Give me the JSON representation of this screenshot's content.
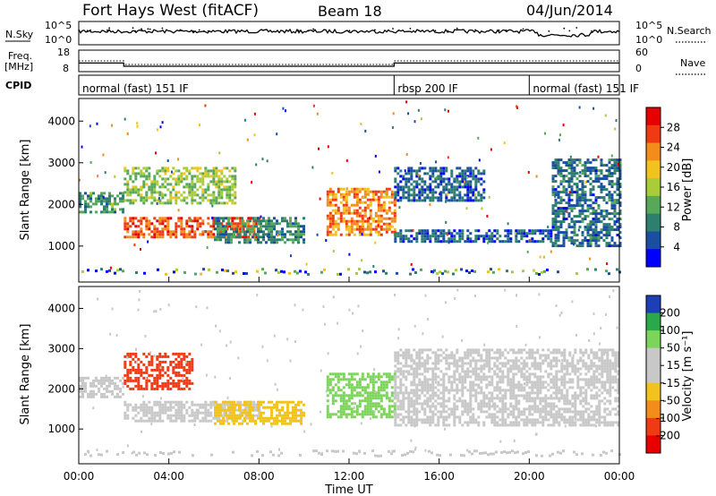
{
  "header": {
    "station": "Fort Hays West (fitACF)",
    "beam": "Beam 18",
    "date": "04/Jun/2014"
  },
  "left_labels": {
    "nsky": "N.Sky",
    "freq": "Freq.",
    "freq_unit": "[MHz]",
    "cpid": "CPID",
    "nsky_tick_top": "10^5",
    "nsky_tick_bottom": "10^0",
    "freq_tick_top": "18",
    "freq_tick_bottom": "8"
  },
  "right_labels": {
    "nsearch": "N.Search",
    "nave": "Nave",
    "nsearch_tick_top": "10^5",
    "nsearch_tick_bottom": "10^0",
    "nave_tick_top": "60",
    "nave_tick_bottom": "0"
  },
  "cpid_segments": [
    {
      "label": "normal (fast) 151 IF",
      "start": "00:00",
      "end": "14:00"
    },
    {
      "label": "rbsp 200 IF",
      "start": "14:00",
      "end": "20:00"
    },
    {
      "label": "normal (fast) 151 IF",
      "start": "20:00",
      "end": "24:00"
    }
  ],
  "panels": {
    "power": {
      "ylabel": "Slant Range [km]",
      "yticks": [
        "1000",
        "2000",
        "3000",
        "4000"
      ],
      "colorbar_label": "Power [dB]",
      "colorbar_ticks": [
        "4",
        "8",
        "12",
        "16",
        "20",
        "24",
        "28"
      ],
      "colorbar_colors": [
        "#0000ff",
        "#1a4fa0",
        "#2f7f6f",
        "#58a85a",
        "#a9cc3a",
        "#f2c31e",
        "#f28c1a",
        "#ef3a14",
        "#e60000"
      ]
    },
    "velocity": {
      "ylabel": "Slant Range [km]",
      "yticks": [
        "1000",
        "2000",
        "3000",
        "4000"
      ],
      "colorbar_label": "Velocity [m s⁻¹]",
      "colorbar_ticks": [
        "200",
        "100",
        "50",
        "15",
        "-15",
        "-50",
        "-100",
        "-200"
      ],
      "colorbar_colors": [
        "#1c3fb5",
        "#2aa84a",
        "#7cd45a",
        "#c8c8c8",
        "#c8c8c8",
        "#f2c31e",
        "#f28c1a",
        "#ef3a14",
        "#e60000"
      ]
    }
  },
  "xaxis": {
    "label": "Time UT",
    "ticks": [
      "00:00",
      "04:00",
      "08:00",
      "12:00",
      "16:00",
      "20:00",
      "00:00"
    ]
  },
  "chart_data": [
    {
      "type": "line",
      "title": "N.Sky / N.Search",
      "xlabel": "",
      "ylabel": "N.Sky",
      "x_range_hours": [
        0,
        24
      ],
      "log_scale": true
    },
    {
      "type": "line",
      "ylabel": "Freq. [MHz]",
      "ylim": [
        8,
        18
      ],
      "series": [
        {
          "name": "Freq.",
          "x": [
            0,
            2,
            2,
            14,
            14,
            24
          ],
          "values": [
            12,
            12,
            10.5,
            10.5,
            12,
            12
          ]
        },
        {
          "name": "Nave",
          "x": [
            0,
            2,
            2,
            14,
            14,
            24
          ],
          "values": [
            30,
            30,
            20,
            20,
            30,
            30
          ]
        }
      ]
    },
    {
      "type": "heatmap",
      "xlabel": "Time UT",
      "ylabel": "Slant Range [km]",
      "ylim": [
        180,
        4500
      ],
      "x_range_hours": [
        0,
        24
      ],
      "colorbar": "Power [dB]",
      "regions": [
        {
          "t": [
            0,
            2
          ],
          "r": [
            1800,
            2300
          ],
          "value": 10
        },
        {
          "t": [
            2,
            8
          ],
          "r": [
            1200,
            1700
          ],
          "value": 24
        },
        {
          "t": [
            2,
            7
          ],
          "r": [
            2000,
            2900
          ],
          "value": 14
        },
        {
          "t": [
            6,
            10
          ],
          "r": [
            1100,
            1700
          ],
          "value": 9
        },
        {
          "t": [
            11,
            14
          ],
          "r": [
            1300,
            2400
          ],
          "value": 22
        },
        {
          "t": [
            14,
            18
          ],
          "r": [
            2100,
            2900
          ],
          "value": 6
        },
        {
          "t": [
            14,
            21
          ],
          "r": [
            1100,
            1400
          ],
          "value": 6
        },
        {
          "t": [
            21,
            24
          ],
          "r": [
            1000,
            3100
          ],
          "value": 7
        }
      ]
    },
    {
      "type": "heatmap",
      "xlabel": "Time UT",
      "ylabel": "Slant Range [km]",
      "ylim": [
        180,
        4500
      ],
      "x_range_hours": [
        0,
        24
      ],
      "colorbar": "Velocity [m s-1]",
      "regions": [
        {
          "t": [
            0,
            2
          ],
          "r": [
            1800,
            2300
          ],
          "value": 0
        },
        {
          "t": [
            2,
            5
          ],
          "r": [
            2000,
            2900
          ],
          "value": -120
        },
        {
          "t": [
            2,
            8
          ],
          "r": [
            1200,
            1700
          ],
          "value": 0
        },
        {
          "t": [
            6,
            10
          ],
          "r": [
            1100,
            1700
          ],
          "value": -30
        },
        {
          "t": [
            11,
            14
          ],
          "r": [
            1300,
            2400
          ],
          "value": 40
        },
        {
          "t": [
            14,
            24
          ],
          "r": [
            1100,
            3000
          ],
          "value": 0
        }
      ]
    }
  ]
}
